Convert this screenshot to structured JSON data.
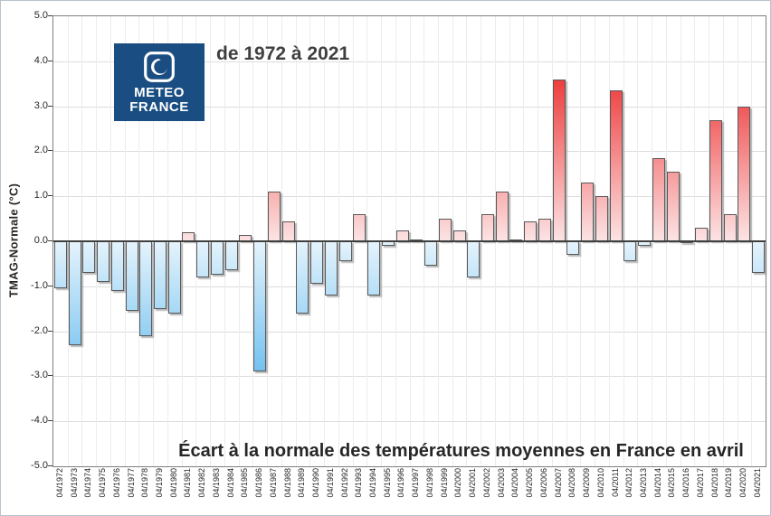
{
  "logo": {
    "line1": "METEO",
    "line2": "FRANCE",
    "bg_color": "#1a4e82"
  },
  "header": {
    "title": "de 1972 à 2021"
  },
  "footer": {
    "annotation": "Écart à la normale des températures moyennes en France en avril"
  },
  "chart_data": {
    "type": "bar",
    "title": "de 1972 à 2021",
    "xlabel": "",
    "ylabel": "TMAG-Normale (°C)",
    "ylim": [
      -5.0,
      5.0
    ],
    "grid": true,
    "legend": false,
    "y_tick_labels": [
      "5.0",
      "4.0",
      "3.0",
      "2.0",
      "1.0",
      "0.0",
      "-1.0",
      "-2.0",
      "-3.0",
      "-4.0",
      "-5.0"
    ],
    "categories": [
      "04/1972",
      "04/1973",
      "04/1974",
      "04/1975",
      "04/1976",
      "04/1977",
      "04/1978",
      "04/1979",
      "04/1980",
      "04/1981",
      "04/1982",
      "04/1983",
      "04/1984",
      "04/1985",
      "04/1986",
      "04/1987",
      "04/1988",
      "04/1989",
      "04/1990",
      "04/1991",
      "04/1992",
      "04/1993",
      "04/1994",
      "04/1995",
      "04/1996",
      "04/1997",
      "04/1998",
      "04/1999",
      "04/2000",
      "04/2001",
      "04/2002",
      "04/2003",
      "04/2004",
      "04/2005",
      "04/2006",
      "04/2007",
      "04/2008",
      "04/2009",
      "04/2010",
      "04/2011",
      "04/2012",
      "04/2013",
      "04/2014",
      "04/2015",
      "04/2016",
      "04/2017",
      "04/2018",
      "04/2019",
      "04/2020",
      "04/2021"
    ],
    "values": [
      -1.05,
      -2.3,
      -0.7,
      -0.9,
      -1.1,
      -1.55,
      -2.1,
      -1.5,
      -1.6,
      0.2,
      -0.8,
      -0.75,
      -0.65,
      0.15,
      -2.9,
      1.1,
      0.45,
      -1.6,
      -0.95,
      -1.2,
      -0.45,
      0.6,
      -1.2,
      -0.1,
      0.25,
      0.05,
      -0.55,
      0.5,
      0.25,
      -0.8,
      0.6,
      1.1,
      0.05,
      0.45,
      0.5,
      3.6,
      -0.3,
      1.3,
      1.0,
      3.35,
      -0.45,
      -0.1,
      1.85,
      1.55,
      -0.05,
      0.3,
      2.7,
      0.6,
      3.0,
      -0.7
    ],
    "annotation": "Écart à la normale des températures moyennes en France en avril",
    "colors": {
      "positive_low": "#fce3e4",
      "positive_high": "#ee3e3e",
      "positive_ref": 3.6,
      "negative_low": "#e4f3fc",
      "negative_high": "#72c1f0",
      "negative_ref": 2.95,
      "zero_line": "#3f3f3f",
      "bar_border": "#595959"
    }
  }
}
